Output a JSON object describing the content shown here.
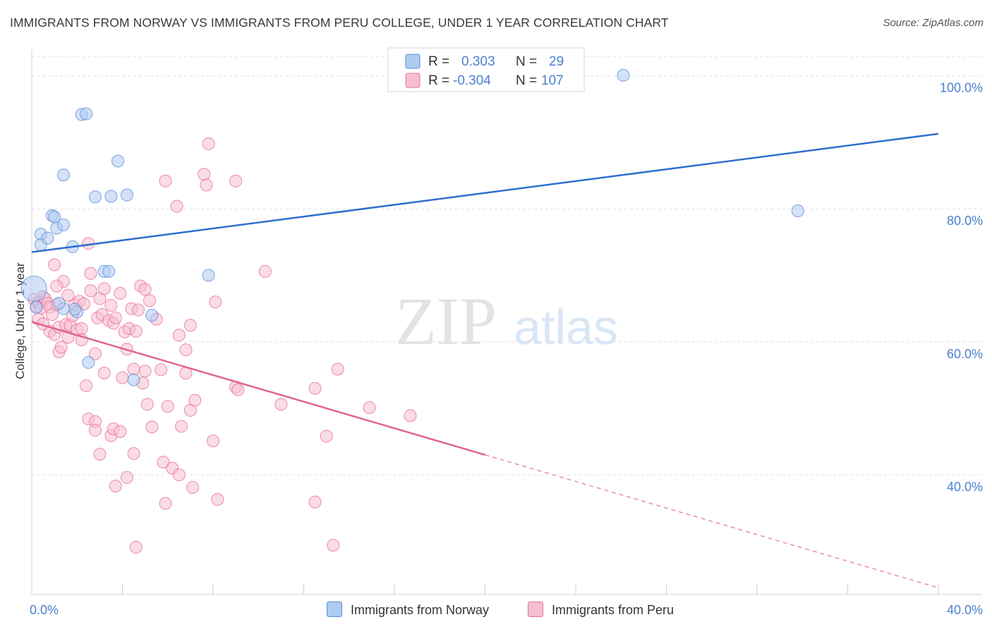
{
  "title": "IMMIGRANTS FROM NORWAY VS IMMIGRANTS FROM PERU COLLEGE, UNDER 1 YEAR CORRELATION CHART",
  "source": "Source: ZipAtlas.com",
  "watermark": {
    "zip": "ZIP",
    "atlas": "atlas"
  },
  "colors": {
    "norway": "#5b8fd8",
    "norway_fill": "#aecbf0",
    "peru": "#e8729a",
    "peru_fill": "#f6bfd1",
    "axis_label": "#4a7fd0"
  },
  "legend": {
    "rows": [
      {
        "r_label": "R =",
        "r_value": "0.303",
        "n_label": "N =",
        "n_value": "29"
      },
      {
        "r_label": "R =",
        "r_value": "-0.304",
        "n_label": "N =",
        "n_value": "107"
      }
    ]
  },
  "bottom_legend": {
    "norway": "Immigrants from Norway",
    "peru": "Immigrants from Peru"
  },
  "chart_data": {
    "type": "scatter",
    "title": "IMMIGRANTS FROM NORWAY VS IMMIGRANTS FROM PERU COLLEGE, UNDER 1 YEAR CORRELATION CHART",
    "ylabel": "College, Under 1 year",
    "xlabel": "",
    "xlim": [
      0,
      40
    ],
    "ylim": [
      22,
      104
    ],
    "x_tick_labels": {
      "min": "0.0%",
      "max": "40.0%"
    },
    "y_ticks": [
      {
        "value": 40,
        "label": "40.0%"
      },
      {
        "value": 60,
        "label": "60.0%"
      },
      {
        "value": 80,
        "label": "80.0%"
      },
      {
        "value": 100,
        "label": "100.0%"
      }
    ],
    "series": [
      {
        "name": "Immigrants from Norway",
        "r": 0.303,
        "n": 29,
        "trend": {
          "x0": 0,
          "y0": 73.5,
          "x1": 40,
          "y1": 91.3,
          "solid_until": 40
        },
        "points": [
          [
            0.1,
            68.0,
            "large"
          ],
          [
            0.4,
            76.2
          ],
          [
            0.4,
            74.6
          ],
          [
            0.7,
            75.6
          ],
          [
            0.9,
            79.0
          ],
          [
            1.0,
            78.8
          ],
          [
            1.1,
            77.1
          ],
          [
            1.4,
            77.6
          ],
          [
            1.8,
            74.3
          ],
          [
            1.4,
            65.0
          ],
          [
            1.2,
            65.8
          ],
          [
            2.0,
            64.5
          ],
          [
            1.4,
            85.1
          ],
          [
            2.2,
            94.2
          ],
          [
            2.4,
            94.3
          ],
          [
            2.8,
            81.8
          ],
          [
            3.5,
            81.9
          ],
          [
            3.8,
            87.2
          ],
          [
            4.2,
            82.1
          ],
          [
            3.2,
            70.6
          ],
          [
            3.4,
            70.6
          ],
          [
            5.3,
            64.0
          ],
          [
            4.5,
            54.3
          ],
          [
            2.5,
            56.9
          ],
          [
            7.8,
            70.0
          ],
          [
            26.1,
            100.1
          ],
          [
            33.8,
            79.7
          ],
          [
            0.2,
            65.2
          ],
          [
            1.9,
            64.9
          ]
        ]
      },
      {
        "name": "Immigrants from Peru",
        "r": -0.304,
        "n": 107,
        "trend": {
          "x0": 0,
          "y0": 63.0,
          "x1": 40,
          "y1": 23.0,
          "solid_until": 20
        },
        "points": [
          [
            0.1,
            66.4
          ],
          [
            0.2,
            65.3
          ],
          [
            0.3,
            65.9
          ],
          [
            0.4,
            65.1
          ],
          [
            0.5,
            66.8
          ],
          [
            0.6,
            66.5
          ],
          [
            0.7,
            65.8
          ],
          [
            0.8,
            65.2
          ],
          [
            0.9,
            64.1
          ],
          [
            0.3,
            63.4
          ],
          [
            0.8,
            61.6
          ],
          [
            1.0,
            61.1
          ],
          [
            1.1,
            65.6
          ],
          [
            1.2,
            62.2
          ],
          [
            1.4,
            69.1
          ],
          [
            1.1,
            68.4
          ],
          [
            1.0,
            71.6
          ],
          [
            1.2,
            58.5
          ],
          [
            1.3,
            59.2
          ],
          [
            1.5,
            62.6
          ],
          [
            1.6,
            60.7
          ],
          [
            1.7,
            62.5
          ],
          [
            1.9,
            65.6
          ],
          [
            1.8,
            63.9
          ],
          [
            2.0,
            61.8
          ],
          [
            2.1,
            66.1
          ],
          [
            2.2,
            62.0
          ],
          [
            2.3,
            65.7
          ],
          [
            2.4,
            53.4
          ],
          [
            2.5,
            48.4
          ],
          [
            2.5,
            74.8
          ],
          [
            2.6,
            70.3
          ],
          [
            2.6,
            67.7
          ],
          [
            2.8,
            48.0
          ],
          [
            2.8,
            58.2
          ],
          [
            2.8,
            46.7
          ],
          [
            2.9,
            63.6
          ],
          [
            3.0,
            66.5
          ],
          [
            3.1,
            64.1
          ],
          [
            3.0,
            43.1
          ],
          [
            3.2,
            68.0
          ],
          [
            3.2,
            55.3
          ],
          [
            3.4,
            63.2
          ],
          [
            3.5,
            65.5
          ],
          [
            3.5,
            45.9
          ],
          [
            3.6,
            46.9
          ],
          [
            3.6,
            62.8
          ],
          [
            3.7,
            63.6
          ],
          [
            3.7,
            38.3
          ],
          [
            3.9,
            67.3
          ],
          [
            4.0,
            54.6
          ],
          [
            4.1,
            61.5
          ],
          [
            4.2,
            58.9
          ],
          [
            4.2,
            39.6
          ],
          [
            4.3,
            62.0
          ],
          [
            4.4,
            65.0
          ],
          [
            4.5,
            43.2
          ],
          [
            4.6,
            61.6
          ],
          [
            4.6,
            29.1
          ],
          [
            4.5,
            55.9
          ],
          [
            4.7,
            64.8
          ],
          [
            4.8,
            68.4
          ],
          [
            4.9,
            53.8
          ],
          [
            5.0,
            67.9
          ],
          [
            5.0,
            55.6
          ],
          [
            5.1,
            50.6
          ],
          [
            5.2,
            66.2
          ],
          [
            5.3,
            47.2
          ],
          [
            5.5,
            63.4
          ],
          [
            5.7,
            55.8
          ],
          [
            5.8,
            41.9
          ],
          [
            5.9,
            35.7
          ],
          [
            5.9,
            84.2
          ],
          [
            6.0,
            50.3
          ],
          [
            6.2,
            41.0
          ],
          [
            6.4,
            80.4
          ],
          [
            6.5,
            61.0
          ],
          [
            6.6,
            47.3
          ],
          [
            6.8,
            55.3
          ],
          [
            6.8,
            58.8
          ],
          [
            7.0,
            49.7
          ],
          [
            7.0,
            62.5
          ],
          [
            7.1,
            38.1
          ],
          [
            7.2,
            51.2
          ],
          [
            7.6,
            85.2
          ],
          [
            7.7,
            83.6
          ],
          [
            7.8,
            89.8
          ],
          [
            8.0,
            45.1
          ],
          [
            8.1,
            66.0
          ],
          [
            8.2,
            36.3
          ],
          [
            9.0,
            53.2
          ],
          [
            9.0,
            84.2
          ],
          [
            9.1,
            52.8
          ],
          [
            10.3,
            70.6
          ],
          [
            11.0,
            50.6
          ],
          [
            12.5,
            53.0
          ],
          [
            12.5,
            35.9
          ],
          [
            13.0,
            45.8
          ],
          [
            13.3,
            29.4
          ],
          [
            13.5,
            55.9
          ],
          [
            14.9,
            50.1
          ],
          [
            16.7,
            48.9
          ],
          [
            0.5,
            62.7
          ],
          [
            2.2,
            60.3
          ],
          [
            3.9,
            46.5
          ],
          [
            6.5,
            40.0
          ],
          [
            1.6,
            67.0
          ]
        ]
      }
    ]
  }
}
